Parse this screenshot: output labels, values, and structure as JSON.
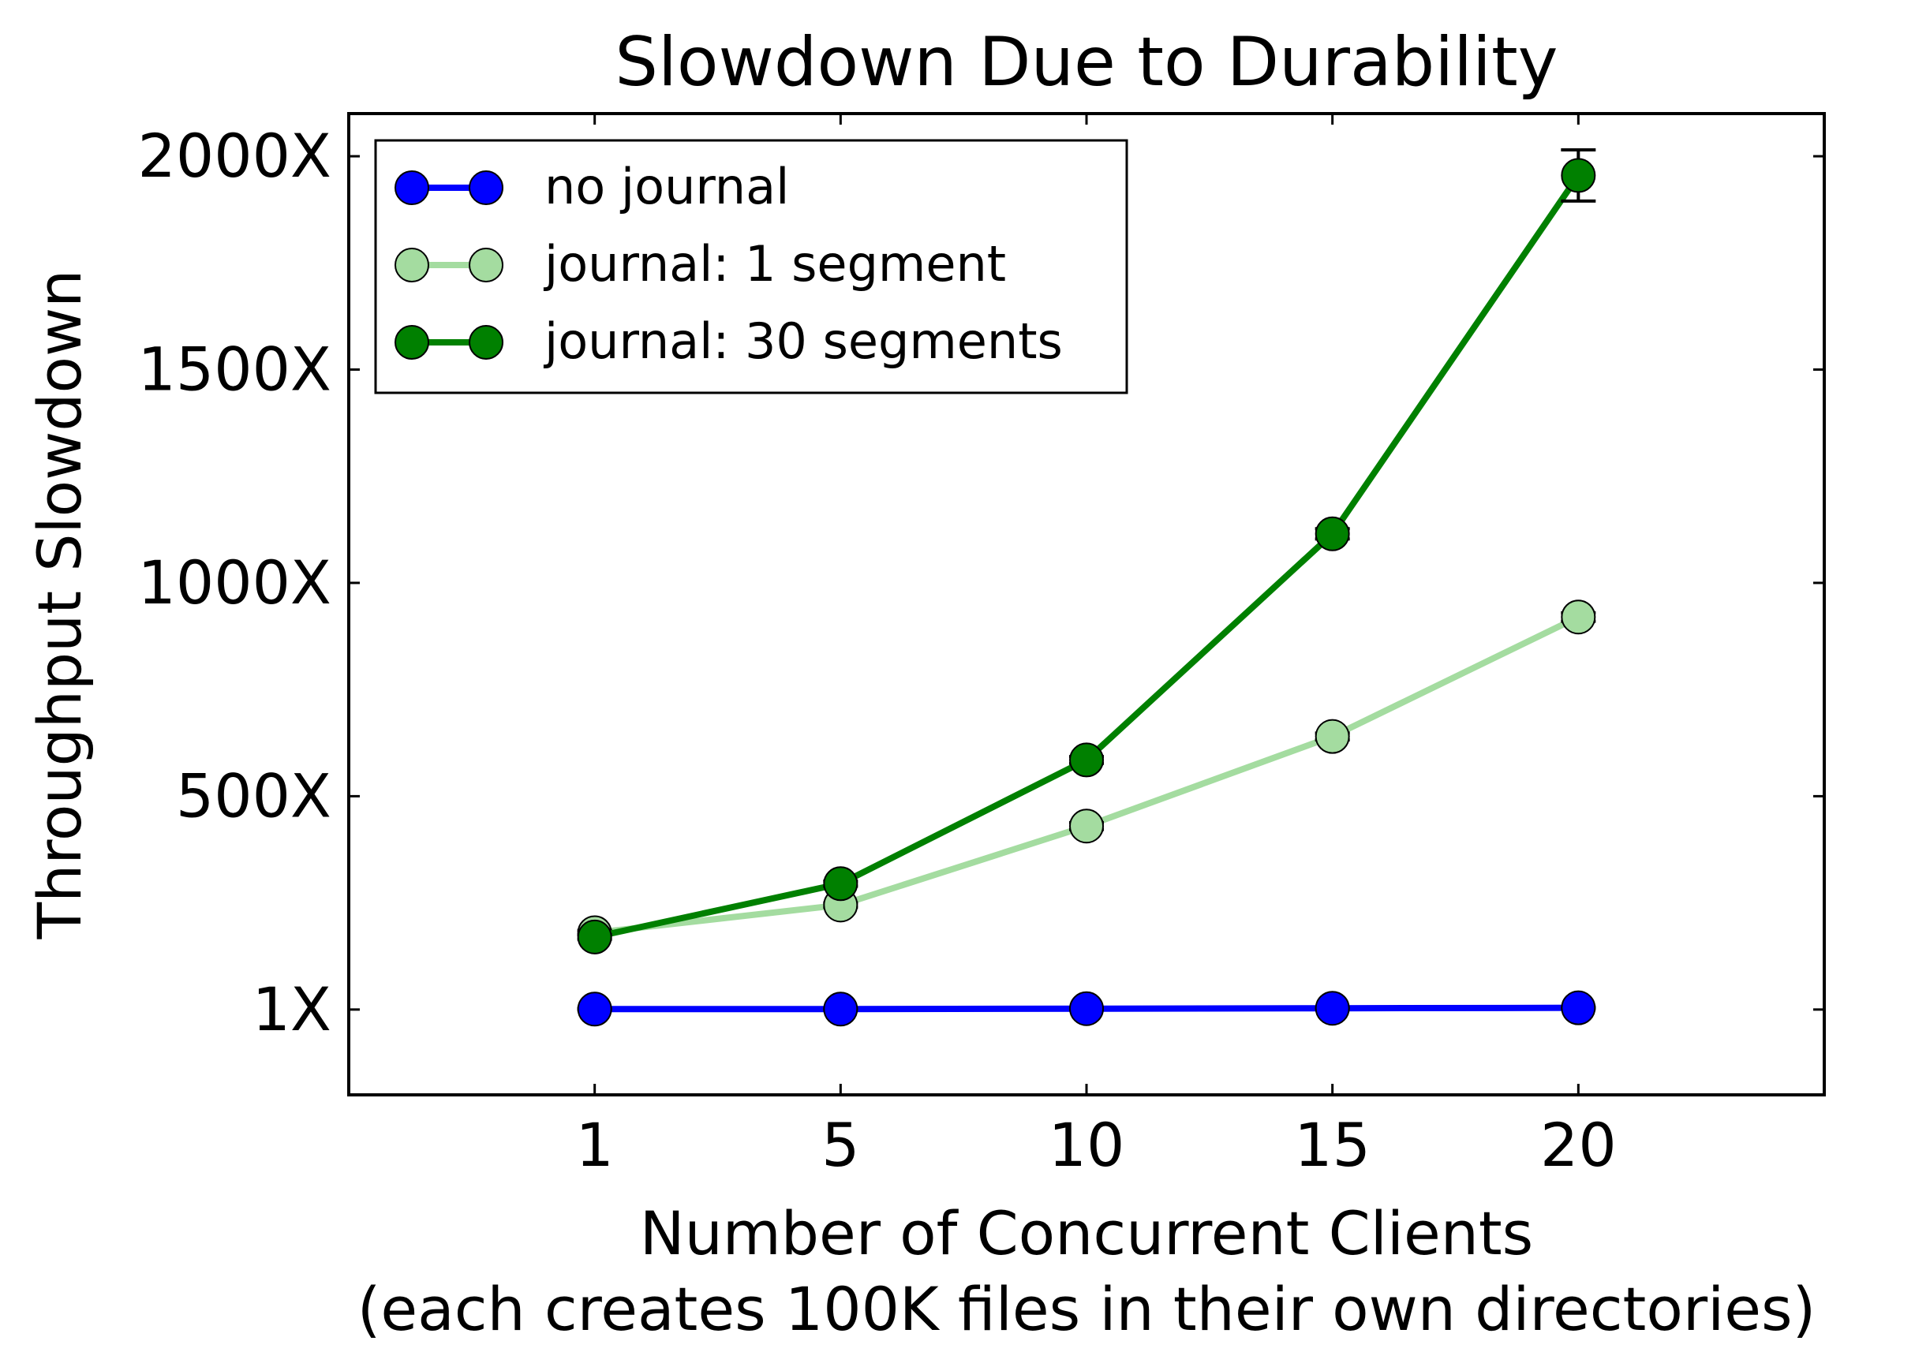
{
  "chart_data": {
    "type": "line",
    "title": "Slowdown Due to Durability",
    "xlabel": "Number of Concurrent Clients",
    "xlabel_sub": "(each creates 100K files in their own directories)",
    "ylabel": "Throughput Slowdown",
    "x_categories": [
      "1",
      "5",
      "10",
      "15",
      "20"
    ],
    "xlim": [
      0,
      6
    ],
    "ylim": [
      -200,
      2100
    ],
    "y_ticks": [
      {
        "value": 0,
        "label": "1X"
      },
      {
        "value": 500,
        "label": "500X"
      },
      {
        "value": 1000,
        "label": "1000X"
      },
      {
        "value": 1500,
        "label": "1500X"
      },
      {
        "value": 2000,
        "label": "2000X"
      }
    ],
    "legend_position": "top-left",
    "grid": false,
    "series": [
      {
        "name": "no journal",
        "color": "#0000ff",
        "values": [
          1,
          1,
          2,
          3,
          4
        ],
        "errors": [
          2,
          2,
          2,
          2,
          2
        ]
      },
      {
        "name": "journal: 1 segment",
        "color": "#a4dca0",
        "values": [
          180,
          245,
          430,
          640,
          920
        ],
        "errors": [
          5,
          5,
          8,
          8,
          10
        ]
      },
      {
        "name": "journal: 30 segments",
        "color": "#008000",
        "values": [
          170,
          295,
          585,
          1115,
          1955
        ],
        "errors": [
          5,
          6,
          8,
          12,
          60
        ]
      }
    ]
  }
}
